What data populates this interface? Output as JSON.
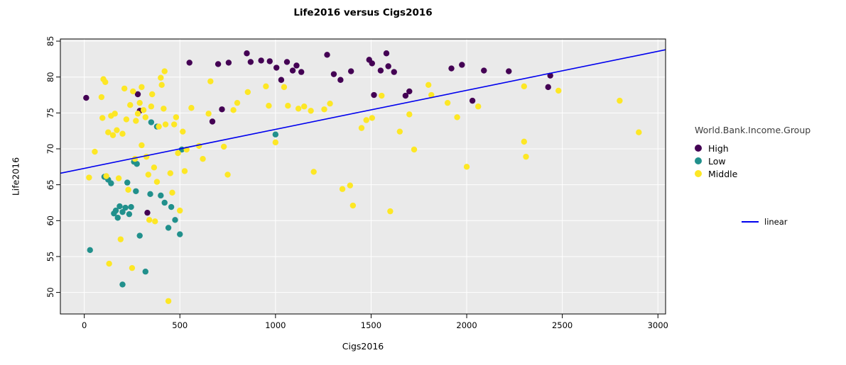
{
  "chart_data": {
    "type": "scatter",
    "title": "Life2016 versus Cigs2016",
    "xlabel": "Cigs2016",
    "ylabel": "Life2016",
    "xlim": [
      -125,
      3040
    ],
    "ylim": [
      47,
      85.3
    ],
    "xticks": [
      0,
      500,
      1000,
      1500,
      2000,
      2500,
      3000
    ],
    "yticks": [
      50,
      55,
      60,
      65,
      70,
      75,
      80,
      85
    ],
    "grid": true,
    "panel_bg": "#EAEAEA",
    "grid_color": "#FFFFFF",
    "legend_position": "right",
    "legend_title": "World.Bank.Income.Group",
    "series": [
      {
        "name": "High",
        "color": "#440154",
        "points": [
          [
            10,
            77.1
          ],
          [
            280,
            77.6
          ],
          [
            290,
            75.3
          ],
          [
            330,
            61.1
          ],
          [
            550,
            82.0
          ],
          [
            670,
            73.8
          ],
          [
            700,
            81.8
          ],
          [
            720,
            75.5
          ],
          [
            755,
            82.0
          ],
          [
            850,
            83.3
          ],
          [
            870,
            82.1
          ],
          [
            925,
            82.3
          ],
          [
            970,
            82.2
          ],
          [
            1005,
            81.3
          ],
          [
            1030,
            79.6
          ],
          [
            1060,
            82.1
          ],
          [
            1090,
            80.9
          ],
          [
            1110,
            81.6
          ],
          [
            1135,
            80.7
          ],
          [
            1270,
            83.1
          ],
          [
            1305,
            80.4
          ],
          [
            1340,
            79.6
          ],
          [
            1395,
            80.8
          ],
          [
            1490,
            82.4
          ],
          [
            1505,
            81.9
          ],
          [
            1515,
            77.5
          ],
          [
            1550,
            80.9
          ],
          [
            1580,
            83.3
          ],
          [
            1590,
            81.5
          ],
          [
            1620,
            80.7
          ],
          [
            1680,
            77.4
          ],
          [
            1700,
            78.0
          ],
          [
            1920,
            81.2
          ],
          [
            1975,
            81.7
          ],
          [
            2030,
            76.7
          ],
          [
            2090,
            80.9
          ],
          [
            2220,
            80.8
          ],
          [
            2437,
            80.2
          ],
          [
            2426,
            78.6
          ]
        ]
      },
      {
        "name": "Low",
        "color": "#21908C",
        "points": [
          [
            30,
            55.9
          ],
          [
            105,
            66.1
          ],
          [
            125,
            65.7
          ],
          [
            140,
            65.2
          ],
          [
            155,
            61.0
          ],
          [
            165,
            61.4
          ],
          [
            175,
            60.4
          ],
          [
            185,
            62.0
          ],
          [
            200,
            61.2
          ],
          [
            200,
            51.1
          ],
          [
            215,
            61.8
          ],
          [
            225,
            65.3
          ],
          [
            235,
            60.9
          ],
          [
            245,
            61.9
          ],
          [
            260,
            68.2
          ],
          [
            270,
            64.1
          ],
          [
            275,
            67.9
          ],
          [
            290,
            57.9
          ],
          [
            320,
            52.9
          ],
          [
            345,
            63.7
          ],
          [
            350,
            73.7
          ],
          [
            380,
            73.1
          ],
          [
            400,
            63.5
          ],
          [
            420,
            62.5
          ],
          [
            440,
            59.0
          ],
          [
            455,
            61.9
          ],
          [
            475,
            60.1
          ],
          [
            500,
            58.1
          ],
          [
            510,
            69.9
          ],
          [
            1000,
            72.0
          ]
        ]
      },
      {
        "name": "Middle",
        "color": "#FDE725",
        "points": [
          [
            25,
            66.0
          ],
          [
            55,
            69.6
          ],
          [
            90,
            77.2
          ],
          [
            95,
            74.3
          ],
          [
            100,
            79.7
          ],
          [
            110,
            79.3
          ],
          [
            115,
            66.2
          ],
          [
            125,
            72.3
          ],
          [
            130,
            54.0
          ],
          [
            140,
            74.6
          ],
          [
            150,
            71.9
          ],
          [
            160,
            74.9
          ],
          [
            170,
            72.6
          ],
          [
            180,
            65.9
          ],
          [
            190,
            57.4
          ],
          [
            200,
            72.1
          ],
          [
            210,
            78.4
          ],
          [
            220,
            74.1
          ],
          [
            230,
            64.3
          ],
          [
            240,
            76.1
          ],
          [
            250,
            53.4
          ],
          [
            255,
            78.0
          ],
          [
            265,
            68.6
          ],
          [
            270,
            73.9
          ],
          [
            280,
            74.9
          ],
          [
            290,
            76.4
          ],
          [
            300,
            78.6
          ],
          [
            300,
            70.5
          ],
          [
            310,
            75.4
          ],
          [
            320,
            74.4
          ],
          [
            325,
            68.9
          ],
          [
            335,
            66.4
          ],
          [
            340,
            60.1
          ],
          [
            350,
            75.9
          ],
          [
            355,
            77.6
          ],
          [
            365,
            67.4
          ],
          [
            370,
            59.9
          ],
          [
            380,
            65.4
          ],
          [
            390,
            73.1
          ],
          [
            400,
            79.9
          ],
          [
            405,
            78.9
          ],
          [
            415,
            75.6
          ],
          [
            420,
            80.8
          ],
          [
            425,
            73.4
          ],
          [
            440,
            48.8
          ],
          [
            450,
            66.6
          ],
          [
            460,
            63.9
          ],
          [
            470,
            73.4
          ],
          [
            480,
            74.4
          ],
          [
            490,
            69.4
          ],
          [
            500,
            61.4
          ],
          [
            515,
            72.4
          ],
          [
            525,
            66.9
          ],
          [
            535,
            69.9
          ],
          [
            560,
            75.7
          ],
          [
            600,
            70.4
          ],
          [
            620,
            68.6
          ],
          [
            650,
            74.9
          ],
          [
            660,
            79.4
          ],
          [
            730,
            70.3
          ],
          [
            750,
            66.4
          ],
          [
            780,
            75.4
          ],
          [
            800,
            76.4
          ],
          [
            855,
            77.9
          ],
          [
            950,
            78.7
          ],
          [
            965,
            76.0
          ],
          [
            1000,
            70.9
          ],
          [
            1045,
            78.6
          ],
          [
            1065,
            76.0
          ],
          [
            1120,
            75.6
          ],
          [
            1150,
            75.9
          ],
          [
            1185,
            75.3
          ],
          [
            1200,
            66.8
          ],
          [
            1255,
            75.5
          ],
          [
            1285,
            76.3
          ],
          [
            1350,
            64.4
          ],
          [
            1390,
            64.9
          ],
          [
            1405,
            62.1
          ],
          [
            1450,
            72.9
          ],
          [
            1475,
            74.0
          ],
          [
            1505,
            74.3
          ],
          [
            1555,
            77.4
          ],
          [
            1600,
            61.3
          ],
          [
            1650,
            72.4
          ],
          [
            1700,
            74.8
          ],
          [
            1725,
            69.9
          ],
          [
            1800,
            78.9
          ],
          [
            1815,
            77.5
          ],
          [
            1900,
            76.4
          ],
          [
            1950,
            74.4
          ],
          [
            2000,
            67.5
          ],
          [
            2060,
            75.9
          ],
          [
            2300,
            78.7
          ],
          [
            2300,
            71.0
          ],
          [
            2310,
            68.9
          ],
          [
            2480,
            78.1
          ],
          [
            2800,
            76.7
          ],
          [
            2900,
            72.3
          ]
        ]
      }
    ],
    "line": {
      "name": "linear",
      "color": "#0000EE",
      "x": [
        -125,
        3040
      ],
      "y": [
        66.6,
        83.8
      ]
    }
  }
}
